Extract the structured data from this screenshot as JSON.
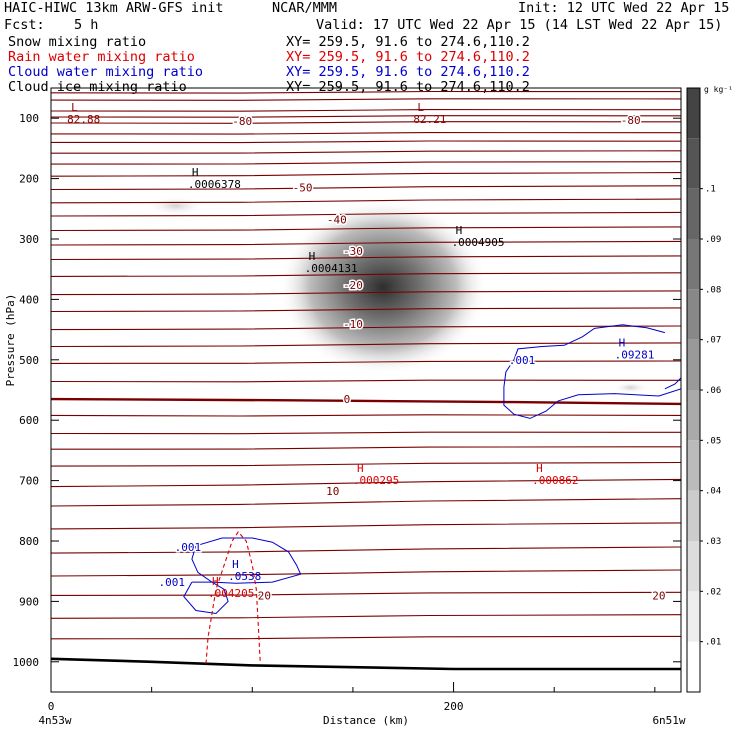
{
  "header": {
    "left_line1": "HAIC-HIWC 13km ARW-GFS init",
    "center_line1": "NCAR/MMM",
    "right_line1": "Init: 12 UTC Wed 22 Apr 15",
    "fcst_label": "Fcst:",
    "fcst_value": "5 h",
    "valid_line": "Valid: 17 UTC Wed 22 Apr 15 (14 LST Wed 22 Apr 15)"
  },
  "legend": {
    "rows": [
      {
        "name": "Snow mixing ratio",
        "xy": "XY= 259.5, 91.6 to 274.6,110.2",
        "color": "#000000"
      },
      {
        "name": "Rain water mixing ratio",
        "xy": "XY= 259.5, 91.6 to 274.6,110.2",
        "color": "#dd0000"
      },
      {
        "name": "Cloud water mixing ratio",
        "xy": "XY= 259.5, 91.6 to 274.6,110.2",
        "color": "#0000cc"
      },
      {
        "name": "Cloud ice mixing ratio",
        "xy": "XY= 259.5, 91.6 to 274.6,110.2",
        "color": "#000000"
      }
    ]
  },
  "chart_data": {
    "type": "cross-section",
    "ylabel": "Pressure (hPa)",
    "xlabel": "Distance (km)",
    "x_range": [
      0,
      313
    ],
    "y_range": [
      50,
      1050
    ],
    "y_ticks": [
      100,
      200,
      300,
      400,
      500,
      600,
      700,
      800,
      900,
      1000
    ],
    "x_ticks": [
      0,
      200
    ],
    "x_minor_ticks": [
      50,
      100,
      150,
      250,
      300
    ],
    "x_left_label": "4n53w",
    "x_right_label": "6n51w",
    "colorbar": {
      "unit": "g kg⁻¹",
      "levels": [
        "",
        ".1",
        ".09",
        ".08",
        ".07",
        ".06",
        ".05",
        ".04",
        ".03",
        ".02",
        ".01"
      ],
      "shades": [
        "#444444",
        "#555555",
        "#666666",
        "#777777",
        "#888888",
        "#999999",
        "#aaaaaa",
        "#bbbbbb",
        "#cccccc",
        "#dddddd",
        "#eeeeee",
        "#ffffff"
      ]
    },
    "temperature_contours": {
      "color": "#7a0000",
      "labels": [
        {
          "text": "-80",
          "x": 95,
          "p": 105
        },
        {
          "text": "-80",
          "x": 288,
          "p": 103
        },
        {
          "text": "-50",
          "x": 125,
          "p": 215
        },
        {
          "text": "-40",
          "x": 142,
          "p": 268
        },
        {
          "text": "-30",
          "x": 150,
          "p": 320
        },
        {
          "text": "-20",
          "x": 150,
          "p": 376
        },
        {
          "text": "-10",
          "x": 150,
          "p": 441
        },
        {
          "text": "0",
          "x": 147,
          "p": 565
        },
        {
          "text": "10",
          "x": 140,
          "p": 717
        },
        {
          "text": "20",
          "x": 106,
          "p": 890
        },
        {
          "text": "20",
          "x": 302,
          "p": 890
        }
      ],
      "bold_zero_p": 565
    },
    "extrema": [
      {
        "mark": "L",
        "value": "82.88",
        "x": 10,
        "p": 88,
        "color": "#8b0000"
      },
      {
        "mark": "L",
        "value": "82.21",
        "x": 182,
        "p": 88,
        "color": "#8b0000"
      },
      {
        "mark": "H",
        "value": ".0006378",
        "x": 70,
        "p": 196,
        "color": "#000000"
      },
      {
        "mark": "H",
        "value": ".0004905",
        "x": 201,
        "p": 292,
        "color": "#000000"
      },
      {
        "mark": "H",
        "value": ".0004131",
        "x": 128,
        "p": 335,
        "color": "#000000"
      },
      {
        "mark": "H",
        "value": ".09281",
        "x": 282,
        "p": 478,
        "color": "#0000cc"
      },
      {
        "mark": "H",
        "value": ".000295",
        "x": 152,
        "p": 686,
        "color": "#dd0000"
      },
      {
        "mark": "H",
        "value": ".000862",
        "x": 241,
        "p": 686,
        "color": "#dd0000"
      },
      {
        "mark": "H",
        "value": ".0538",
        "x": 90,
        "p": 845,
        "color": "#0000cc"
      },
      {
        "mark": "H",
        "value": ".004205",
        "x": 80,
        "p": 873,
        "color": "#dd0000"
      }
    ],
    "cloud_water_labels": [
      {
        "text": ".001",
        "x": 234,
        "p": 500
      },
      {
        "text": ".001",
        "x": 68,
        "p": 810
      },
      {
        "text": ".001",
        "x": 60,
        "p": 868
      }
    ],
    "snow_max": {
      "x": 165,
      "p": 380,
      "value": 0.1
    }
  }
}
